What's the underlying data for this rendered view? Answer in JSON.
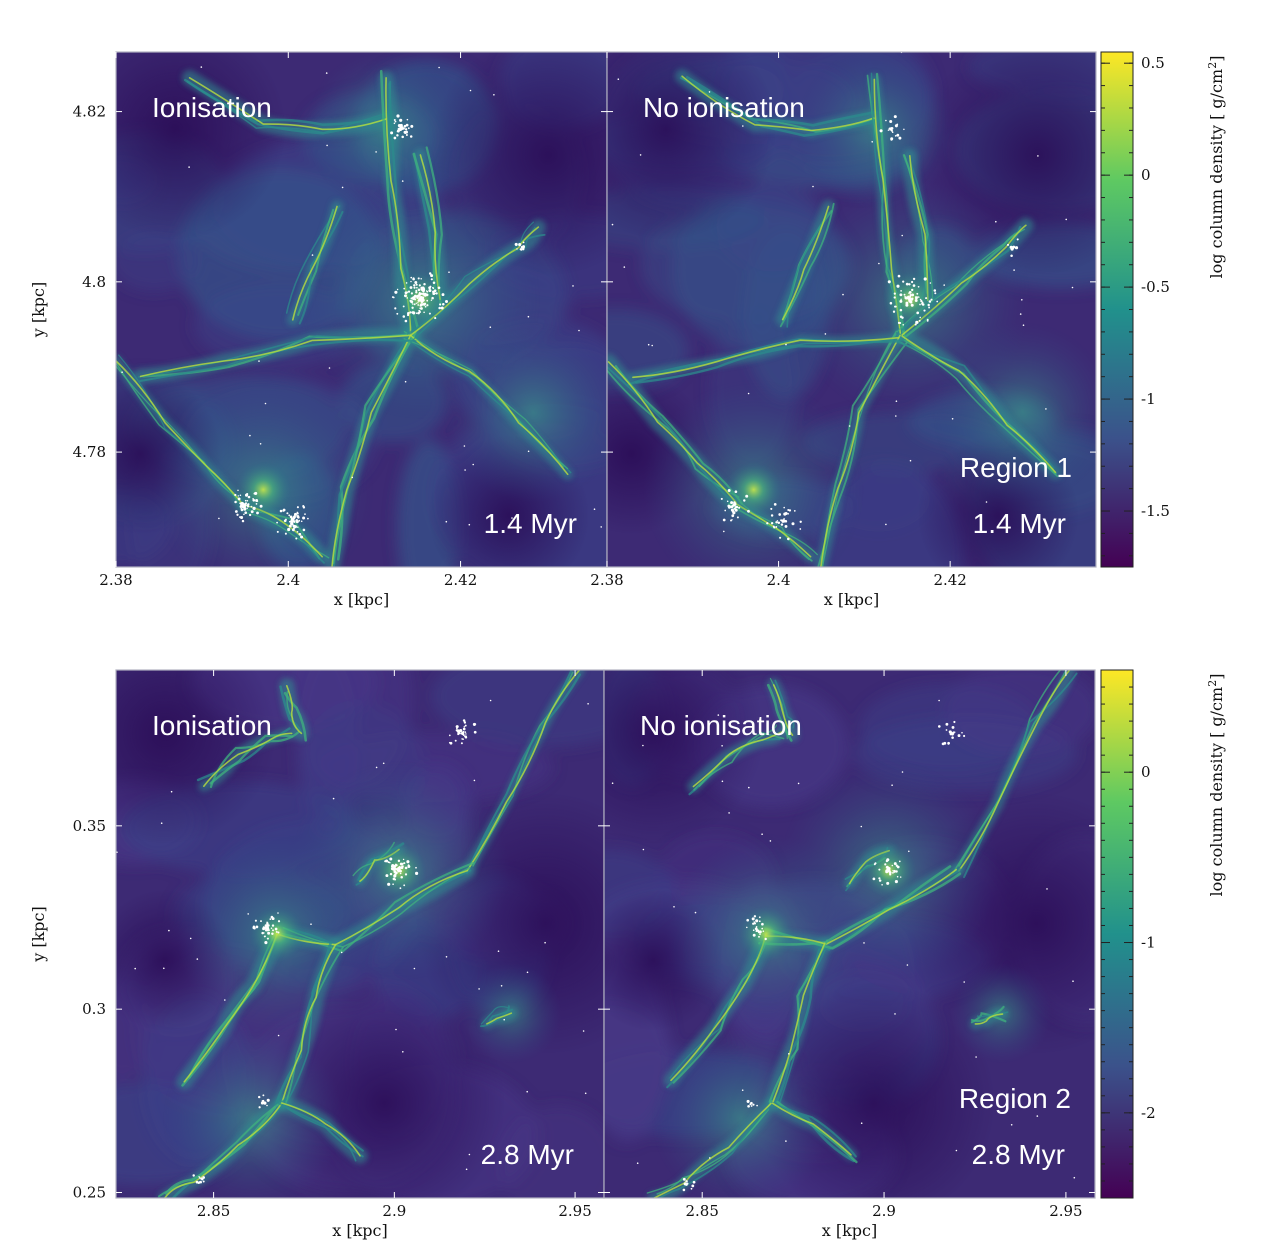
{
  "chart_data": {
    "type": "heatmap",
    "colormap": {
      "name": "viridis",
      "stops": [
        "#440154",
        "#3b528b",
        "#21918c",
        "#5ec962",
        "#fde725"
      ]
    },
    "colors": {
      "star_particles": "#ffffff",
      "panel_border": "#b0b0c0",
      "tick": "#ffffff"
    },
    "rows": [
      {
        "region": "Region 1",
        "time": "1.4 Myr",
        "xlabel": "x [kpc]",
        "ylabel": "y [kpc]",
        "xlim": [
          2.38,
          2.437
        ],
        "ylim": [
          4.7665,
          4.827
        ],
        "xticks": [
          {
            "value": 2.38,
            "label": "2.38"
          },
          {
            "value": 2.4,
            "label": "2.4"
          },
          {
            "value": 2.42,
            "label": "2.42"
          }
        ],
        "yticks": [
          {
            "value": 4.78,
            "label": "4.78"
          },
          {
            "value": 4.8,
            "label": "4.8"
          },
          {
            "value": 4.82,
            "label": "4.82"
          }
        ],
        "panels": [
          {
            "label": "Ionisation",
            "time_label": "1.4 Myr",
            "region_label": ""
          },
          {
            "label": "No ionisation",
            "time_label": "1.4 Myr",
            "region_label": "Region 1"
          }
        ],
        "colorbar": {
          "label_text": "log column density [ g/cm",
          "label_sup": "2",
          "label_close": "]",
          "range": [
            -1.75,
            0.55
          ],
          "ticks": [
            {
              "value": 0.5,
              "label": "0.5"
            },
            {
              "value": 0,
              "label": "0"
            },
            {
              "value": -0.5,
              "label": "-0.5"
            },
            {
              "value": -1,
              "label": "-1"
            },
            {
              "value": -1.5,
              "label": "-1.5"
            }
          ]
        }
      },
      {
        "region": "Region 2",
        "time": "2.8 Myr",
        "xlabel": "x [kpc]",
        "ylabel": "y [kpc]",
        "xlim": [
          2.823,
          2.958
        ],
        "ylim": [
          0.2485,
          0.3925
        ],
        "xticks": [
          {
            "value": 2.85,
            "label": "2.85"
          },
          {
            "value": 2.9,
            "label": "2.9"
          },
          {
            "value": 2.95,
            "label": "2.95"
          }
        ],
        "yticks": [
          {
            "value": 0.25,
            "label": "0.25"
          },
          {
            "value": 0.3,
            "label": "0.3"
          },
          {
            "value": 0.35,
            "label": "0.35"
          }
        ],
        "panels": [
          {
            "label": "Ionisation",
            "time_label": "2.8 Myr",
            "region_label": ""
          },
          {
            "label": "No ionisation",
            "time_label": "2.8 Myr",
            "region_label": "Region 2"
          }
        ],
        "colorbar": {
          "label_text": "log column density [ g/cm",
          "label_sup": "2",
          "label_close": "]",
          "range": [
            -2.5,
            0.6
          ],
          "ticks": [
            {
              "value": 0,
              "label": "0"
            },
            {
              "value": -1,
              "label": "-1"
            },
            {
              "value": -2,
              "label": "-2"
            }
          ]
        }
      }
    ]
  }
}
